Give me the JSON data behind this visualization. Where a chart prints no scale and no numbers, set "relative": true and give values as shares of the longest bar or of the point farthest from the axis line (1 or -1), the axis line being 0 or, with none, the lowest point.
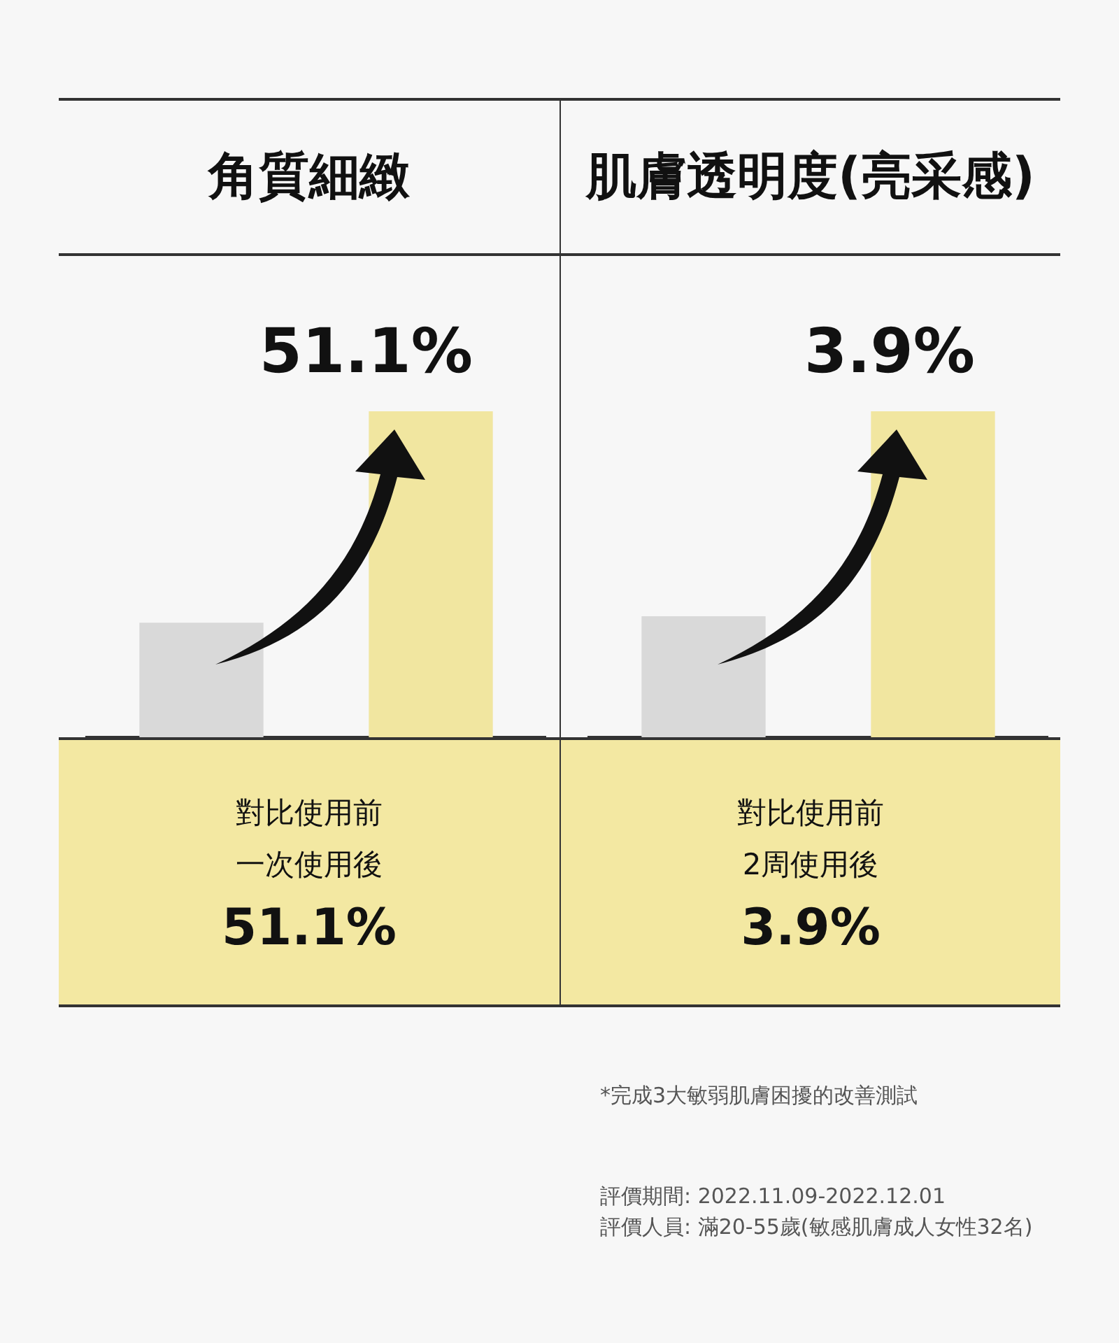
{
  "chart_data": [
    {
      "type": "bar",
      "title": "角質細緻",
      "categories": [
        null,
        null
      ],
      "values": [
        0.35,
        1
      ],
      "colors": [
        "#d9d9d9",
        "#f1e6a0"
      ],
      "relative": true,
      "annotations": [
        "51.1%",
        "對比使用前",
        "一次使用後",
        "51.1%"
      ]
    },
    {
      "type": "bar",
      "title": "肌膚透明度(亮采感)",
      "categories": [
        null,
        null
      ],
      "values": [
        0.37,
        1
      ],
      "colors": [
        "#d9d9d9",
        "#f1e6a0"
      ],
      "relative": true,
      "annotations": [
        "3.9%",
        "對比使用前",
        "2周使用後",
        "3.9%",
        "*完成3大敏弱肌膚困擾的改善測試",
        "評價期間: 2022.11.09-2022.12.01",
        "評價人員: 滿20-55歲(敏感肌膚成人女性32名)"
      ]
    }
  ]
}
